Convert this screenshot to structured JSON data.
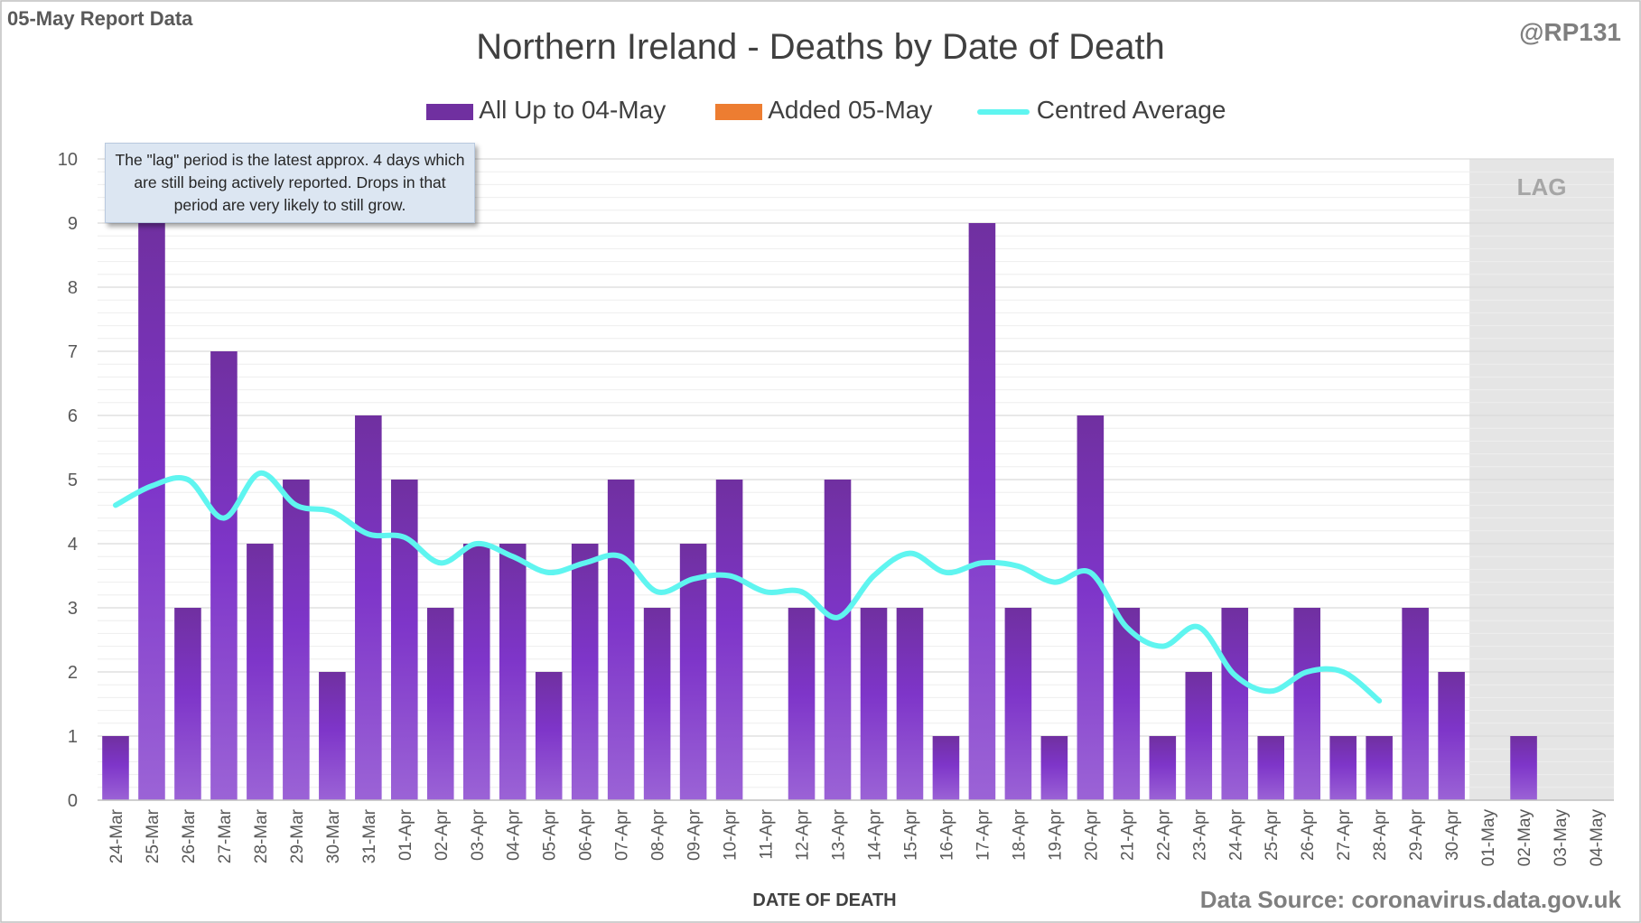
{
  "header": {
    "report_label": "05-May Report Data",
    "handle": "@RP131",
    "source": "Data Source: coronavirus.data.gov.uk"
  },
  "note": "The \"lag\" period is the latest approx. 4 days which are still being actively reported.  Drops in that period are very likely to still grow.",
  "lag_label": "LAG",
  "colors": {
    "bar": "#7030a0",
    "added": "#ed7d31",
    "average": "#5ff5f0",
    "lag_shade": "#e5e5e5",
    "grid": "#d9d9d9"
  },
  "chart_data": {
    "type": "bar",
    "title": "Northern Ireland - Deaths by Date of Death",
    "xlabel": "DATE OF DEATH",
    "ylabel": "",
    "ylim": [
      0,
      10
    ],
    "yticks": [
      0,
      1,
      2,
      3,
      4,
      5,
      6,
      7,
      8,
      9,
      10
    ],
    "grid": true,
    "legend": "top-center",
    "lag_period": [
      "01-May",
      "04-May"
    ],
    "categories": [
      "24-Mar",
      "25-Mar",
      "26-Mar",
      "27-Mar",
      "28-Mar",
      "29-Mar",
      "30-Mar",
      "31-Mar",
      "01-Apr",
      "02-Apr",
      "03-Apr",
      "04-Apr",
      "05-Apr",
      "06-Apr",
      "07-Apr",
      "08-Apr",
      "09-Apr",
      "10-Apr",
      "11-Apr",
      "12-Apr",
      "13-Apr",
      "14-Apr",
      "15-Apr",
      "16-Apr",
      "17-Apr",
      "18-Apr",
      "19-Apr",
      "20-Apr",
      "21-Apr",
      "22-Apr",
      "23-Apr",
      "24-Apr",
      "25-Apr",
      "26-Apr",
      "27-Apr",
      "28-Apr",
      "29-Apr",
      "30-Apr",
      "01-May",
      "02-May",
      "03-May",
      "04-May"
    ],
    "series": [
      {
        "name": "All Up to 04-May",
        "type": "bar",
        "values": [
          1,
          9,
          3,
          7,
          4,
          5,
          2,
          6,
          5,
          3,
          4,
          4,
          2,
          4,
          5,
          3,
          4,
          5,
          0,
          3,
          5,
          3,
          3,
          1,
          9,
          3,
          1,
          6,
          3,
          1,
          2,
          3,
          1,
          3,
          1,
          1,
          3,
          2,
          0,
          1,
          0,
          0
        ]
      },
      {
        "name": "Added 05-May",
        "type": "bar",
        "values": [
          0,
          0,
          0,
          0,
          0,
          0,
          0,
          0,
          0,
          0,
          0,
          0,
          0,
          0,
          0,
          0,
          0,
          0,
          0,
          0,
          0,
          0,
          0,
          0,
          0,
          0,
          0,
          0,
          0,
          0,
          0,
          0,
          0,
          0,
          0,
          0,
          0,
          0,
          0,
          0,
          0,
          0
        ]
      },
      {
        "name": "Centred Average",
        "type": "line",
        "values": [
          4.6,
          4.9,
          5.0,
          4.4,
          5.1,
          4.6,
          4.5,
          4.15,
          4.1,
          3.7,
          4.0,
          3.8,
          3.55,
          3.7,
          3.8,
          3.25,
          3.45,
          3.5,
          3.25,
          3.25,
          2.85,
          3.5,
          3.85,
          3.55,
          3.7,
          3.65,
          3.4,
          3.55,
          2.7,
          2.4,
          2.7,
          1.95,
          1.7,
          2.0,
          2.0,
          1.55,
          null,
          null,
          null,
          null,
          null,
          null
        ]
      }
    ]
  }
}
